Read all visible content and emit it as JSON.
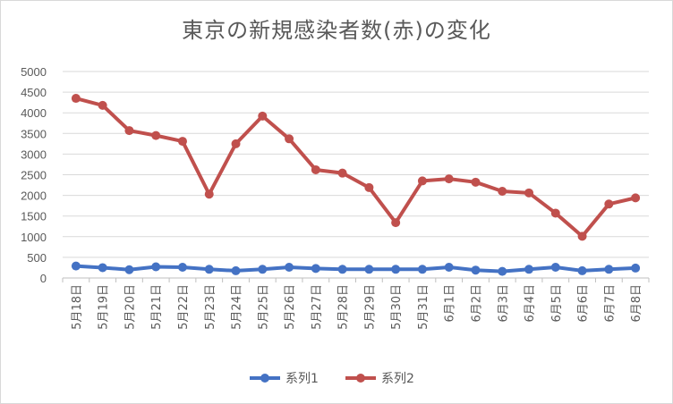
{
  "chart_data": {
    "type": "line",
    "title": "東京の新規感染者数(赤)の変化",
    "xlabel": "",
    "ylabel": "",
    "ylim": [
      0,
      5000
    ],
    "yticks": [
      0,
      500,
      1000,
      1500,
      2000,
      2500,
      3000,
      3500,
      4000,
      4500,
      5000
    ],
    "grid": "horizontal",
    "legend": "bottom",
    "categories": [
      "5月18日",
      "5月19日",
      "5月20日",
      "5月21日",
      "5月22日",
      "5月23日",
      "5月24日",
      "5月25日",
      "5月26日",
      "5月27日",
      "5月28日",
      "5月29日",
      "5月30日",
      "5月31日",
      "6月1日",
      "6月2日",
      "6月3日",
      "6月4日",
      "6月5日",
      "6月6日",
      "6月7日",
      "6月8日"
    ],
    "series": [
      {
        "name": "系列1",
        "color": "#4472c4",
        "values": [
          290,
          250,
          200,
          270,
          260,
          210,
          175,
          210,
          260,
          230,
          210,
          210,
          210,
          210,
          260,
          190,
          160,
          210,
          260,
          175,
          210,
          240
        ]
      },
      {
        "name": "系列2",
        "color": "#c0504d",
        "values": [
          4350,
          4180,
          3570,
          3450,
          3310,
          2030,
          3250,
          3920,
          3370,
          2620,
          2540,
          2190,
          1340,
          2350,
          2400,
          2320,
          2100,
          2060,
          1570,
          1010,
          1790,
          1940
        ]
      }
    ]
  }
}
